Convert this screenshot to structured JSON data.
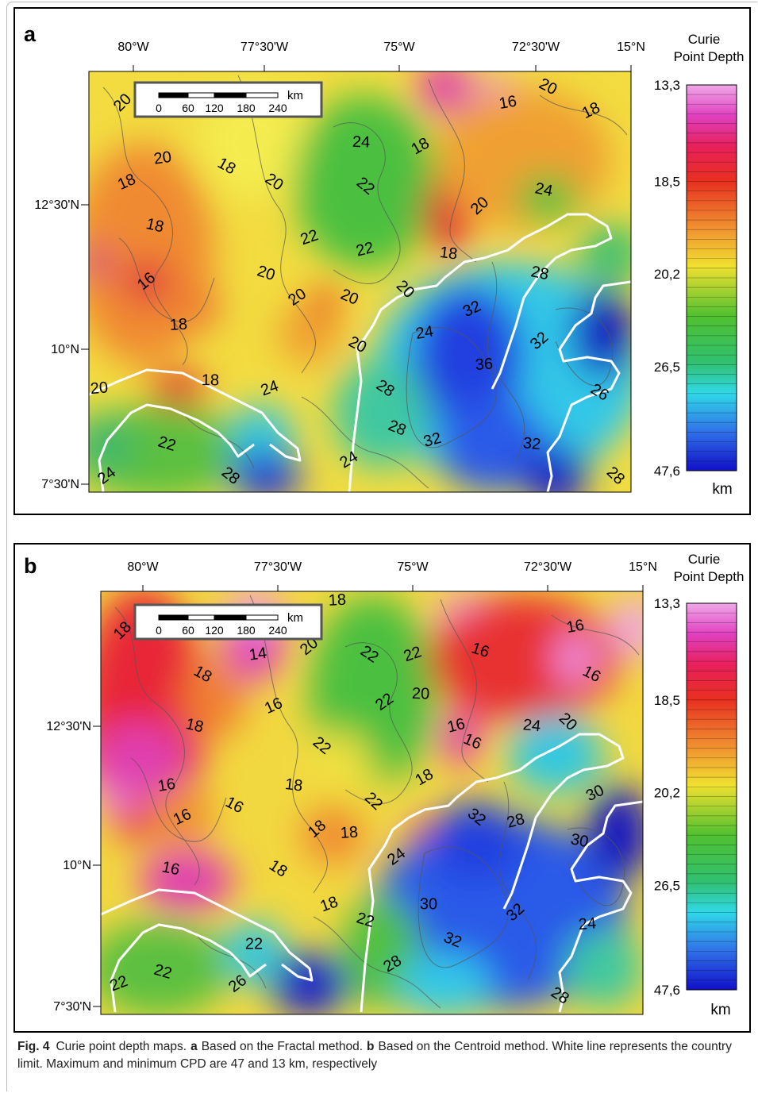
{
  "panels": [
    {
      "label": "a",
      "x_labels": [
        "80°W",
        "77°30'W",
        "75°W",
        "72°30'W",
        "15°N"
      ],
      "y_labels": [
        "12°30'N",
        "10°N",
        "7°30'N"
      ],
      "scale_bar": {
        "unit": "km",
        "ticks": [
          0,
          60,
          120,
          180,
          240
        ]
      },
      "colorbar": {
        "title_lines": [
          "Curie",
          "Point Depth"
        ],
        "ticks": [
          "13,3",
          "18,5",
          "20,2",
          "26,5",
          "47,6"
        ],
        "unit": "km"
      },
      "contour_labels": [
        "20",
        "20",
        "18",
        "18",
        "18",
        "16",
        "18",
        "20",
        "22",
        "20",
        "20",
        "24",
        "22",
        "22",
        "20",
        "18",
        "18",
        "20",
        "24",
        "20",
        "32",
        "28",
        "32",
        "36",
        "28",
        "24",
        "22",
        "24",
        "18",
        "28",
        "32",
        "28",
        "24",
        "32",
        "28",
        "16",
        "20",
        "18",
        "24",
        "20",
        "20",
        "26"
      ]
    },
    {
      "label": "b",
      "x_labels": [
        "80°W",
        "77°30'W",
        "75°W",
        "72°30'W",
        "15°N"
      ],
      "y_labels": [
        "12°30'N",
        "10°N",
        "7°30'N"
      ],
      "scale_bar": {
        "unit": "km",
        "ticks": [
          0,
          60,
          120,
          180,
          240
        ]
      },
      "colorbar": {
        "title_lines": [
          "Curie",
          "Point Depth"
        ],
        "ticks": [
          "13,3",
          "18,5",
          "20,2",
          "26,5",
          "47,6"
        ],
        "unit": "km"
      },
      "contour_labels": [
        "18",
        "14",
        "18",
        "16",
        "18",
        "20",
        "18",
        "22",
        "22",
        "16",
        "22",
        "20",
        "22",
        "16",
        "16",
        "18",
        "18",
        "22",
        "16",
        "16",
        "16",
        "16",
        "18",
        "18",
        "18",
        "18",
        "22",
        "24",
        "30",
        "32",
        "28",
        "32",
        "28",
        "24",
        "20",
        "16",
        "16",
        "30",
        "30",
        "32",
        "24",
        "28",
        "22",
        "22",
        "26",
        "22"
      ]
    }
  ],
  "caption": {
    "figure": "Fig. 4",
    "parts": [
      {
        "text": "Curie point depth maps.",
        "bold": false
      },
      {
        "text": "a",
        "bold": true
      },
      {
        "text": "Based on the Fractal method.",
        "bold": false
      },
      {
        "text": "b",
        "bold": true
      },
      {
        "text": "Based on the Centroid method. White line represents the country limit. Maximum and minimum CPD are 47 and 13 km, respectively",
        "bold": false
      }
    ]
  }
}
